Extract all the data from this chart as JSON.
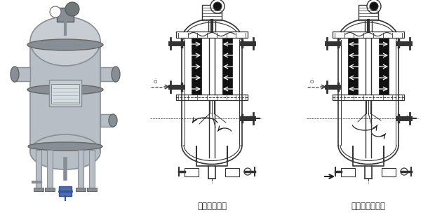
{
  "bg_color": "#ffffff",
  "label1": "正常过滤状态",
  "label2": "滤芯反冲洗状态",
  "label_fontsize": 8.5,
  "label_color": "#222222",
  "fig_width": 6.3,
  "fig_height": 3.07,
  "dpi": 100,
  "line_color": "#333333",
  "black_fill": "#111111",
  "arrow_color": "#222222",
  "gray_vessel": "#a8aeb5",
  "gray_mid": "#b8bec5",
  "gray_light": "#c8cdd3",
  "gray_dark": "#888e95"
}
